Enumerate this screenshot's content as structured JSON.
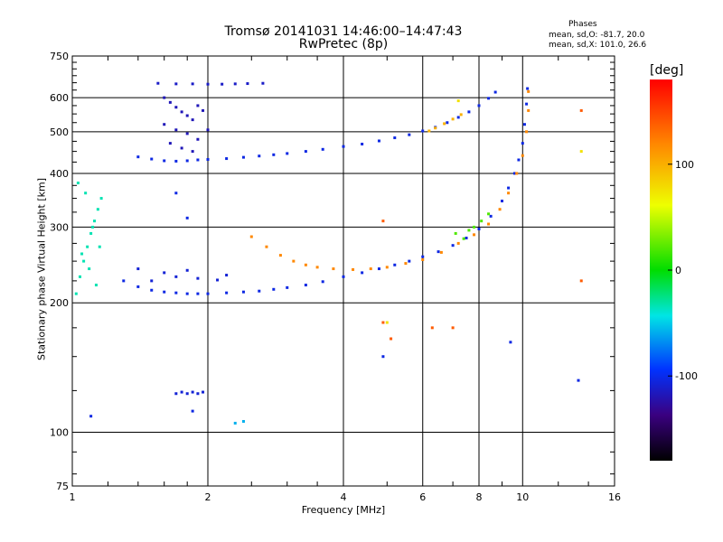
{
  "title": "Tromsø 20141031 14:46:00–14:47:43",
  "subtitle": "RwPretec (8p)",
  "stats": {
    "header": "Phases",
    "o_line": "mean, sd,O: -81.7, 20.0",
    "x_line": "mean, sd,X: 101.0, 26.6"
  },
  "chart_data": {
    "type": "scatter",
    "xlabel": "Frequency [MHz]",
    "ylabel": "Stationary phase Virtual Height [km]",
    "x_scale": "log",
    "y_scale": "log",
    "xlim": [
      1,
      16
    ],
    "ylim": [
      75,
      750
    ],
    "x_ticks": [
      1,
      2,
      4,
      6,
      8,
      10,
      16
    ],
    "x_tick_labels": [
      "1",
      "2",
      "4",
      "6",
      "8",
      "10",
      "16"
    ],
    "y_ticks": [
      75,
      100,
      200,
      300,
      400,
      500,
      600,
      750
    ],
    "y_tick_labels": [
      "75",
      "100",
      "200",
      "300",
      "400",
      "500",
      "600",
      "750"
    ],
    "grid": true,
    "colorbar": {
      "label": "[deg]",
      "range": [
        -180,
        180
      ],
      "ticks": [
        100,
        0,
        -100
      ],
      "tick_labels": [
        "100",
        "0",
        "-100"
      ]
    },
    "series": [
      {
        "points": [
          [
            1.4,
            437
          ],
          [
            1.5,
            432
          ],
          [
            1.6,
            428
          ],
          [
            1.7,
            427
          ],
          [
            1.8,
            428
          ],
          [
            1.9,
            430
          ],
          [
            2.0,
            431
          ],
          [
            2.2,
            433
          ],
          [
            2.4,
            436
          ],
          [
            2.6,
            439
          ],
          [
            2.8,
            442
          ],
          [
            3.0,
            445
          ],
          [
            3.3,
            450
          ],
          [
            3.6,
            455
          ],
          [
            4.0,
            462
          ],
          [
            4.4,
            468
          ],
          [
            4.8,
            476
          ],
          [
            5.2,
            484
          ],
          [
            5.6,
            492
          ],
          [
            6.0,
            502
          ],
          [
            6.4,
            512
          ],
          [
            6.8,
            525
          ],
          [
            7.2,
            540
          ],
          [
            7.6,
            556
          ],
          [
            8.0,
            575
          ],
          [
            8.4,
            598
          ],
          [
            8.7,
            618
          ]
        ],
        "phase": -105
      },
      {
        "points": [
          [
            1.55,
            648
          ],
          [
            1.7,
            646
          ],
          [
            1.85,
            646
          ],
          [
            2.0,
            645
          ],
          [
            2.15,
            645
          ],
          [
            2.3,
            646
          ],
          [
            2.45,
            647
          ],
          [
            2.65,
            648
          ]
        ],
        "phase": -115
      },
      {
        "points": [
          [
            1.6,
            600
          ],
          [
            1.65,
            585
          ],
          [
            1.7,
            570
          ],
          [
            1.75,
            556
          ],
          [
            1.8,
            545
          ],
          [
            1.85,
            533
          ],
          [
            1.9,
            575
          ],
          [
            1.95,
            560
          ],
          [
            1.6,
            520
          ],
          [
            1.7,
            505
          ],
          [
            1.8,
            495
          ],
          [
            1.9,
            480
          ],
          [
            1.65,
            470
          ],
          [
            1.75,
            458
          ],
          [
            1.85,
            450
          ],
          [
            2.0,
            505
          ]
        ],
        "phase": -120
      },
      {
        "points": [
          [
            1.3,
            225
          ],
          [
            1.4,
            218
          ],
          [
            1.5,
            214
          ],
          [
            1.6,
            212
          ],
          [
            1.7,
            211
          ],
          [
            1.8,
            210
          ],
          [
            1.9,
            210
          ],
          [
            2.0,
            210
          ],
          [
            2.2,
            211
          ],
          [
            2.4,
            212
          ],
          [
            2.6,
            213
          ],
          [
            2.8,
            215
          ],
          [
            3.0,
            217
          ],
          [
            3.3,
            220
          ],
          [
            3.6,
            224
          ],
          [
            4.0,
            230
          ],
          [
            4.4,
            235
          ],
          [
            4.8,
            240
          ],
          [
            5.2,
            245
          ],
          [
            5.6,
            250
          ],
          [
            6.0,
            256
          ],
          [
            6.5,
            263
          ],
          [
            7.0,
            272
          ],
          [
            7.5,
            283
          ],
          [
            8.0,
            297
          ],
          [
            8.5,
            318
          ],
          [
            9.0,
            345
          ],
          [
            9.3,
            370
          ],
          [
            9.6,
            400
          ],
          [
            9.8,
            430
          ],
          [
            10.0,
            470
          ],
          [
            10.1,
            520
          ],
          [
            10.2,
            580
          ],
          [
            10.25,
            630
          ]
        ],
        "phase": -105
      },
      {
        "points": [
          [
            1.5,
            225
          ],
          [
            1.7,
            230
          ],
          [
            1.9,
            228
          ],
          [
            2.1,
            226
          ],
          [
            1.6,
            235
          ],
          [
            1.8,
            238
          ],
          [
            2.2,
            232
          ],
          [
            1.4,
            240
          ]
        ],
        "phase": -110
      },
      {
        "points": [
          [
            2.5,
            285
          ],
          [
            2.7,
            270
          ],
          [
            2.9,
            258
          ],
          [
            3.1,
            250
          ],
          [
            3.3,
            245
          ],
          [
            3.5,
            242
          ],
          [
            3.8,
            240
          ],
          [
            4.2,
            239
          ],
          [
            4.6,
            240
          ],
          [
            5.0,
            242
          ],
          [
            5.5,
            247
          ],
          [
            6.0,
            252
          ],
          [
            6.6,
            262
          ],
          [
            7.2,
            275
          ],
          [
            7.8,
            288
          ],
          [
            8.4,
            305
          ],
          [
            8.9,
            330
          ],
          [
            9.3,
            360
          ],
          [
            9.7,
            400
          ],
          [
            10.0,
            440
          ],
          [
            10.2,
            500
          ],
          [
            10.3,
            560
          ],
          [
            10.3,
            620
          ]
        ],
        "phase": 120
      },
      {
        "points": [
          [
            6.2,
            502
          ],
          [
            6.4,
            510
          ],
          [
            6.7,
            522
          ],
          [
            7.0,
            535
          ],
          [
            7.3,
            548
          ]
        ],
        "phase": 100
      },
      {
        "points": [
          [
            1.02,
            210
          ],
          [
            1.04,
            230
          ],
          [
            1.06,
            250
          ],
          [
            1.08,
            270
          ],
          [
            1.1,
            290
          ],
          [
            1.12,
            310
          ],
          [
            1.14,
            330
          ],
          [
            1.16,
            350
          ],
          [
            1.03,
            380
          ],
          [
            1.07,
            360
          ],
          [
            1.11,
            300
          ],
          [
            1.05,
            260
          ],
          [
            1.09,
            240
          ],
          [
            1.13,
            220
          ],
          [
            1.15,
            270
          ]
        ],
        "phase": -35
      },
      {
        "points": [
          [
            1.7,
            123
          ],
          [
            1.75,
            124
          ],
          [
            1.8,
            123
          ],
          [
            1.85,
            124
          ],
          [
            1.9,
            123
          ],
          [
            1.95,
            124
          ]
        ],
        "phase": -110
      },
      {
        "points": [
          [
            2.3,
            105
          ],
          [
            2.4,
            106
          ]
        ],
        "phase": -60
      },
      {
        "points": [
          [
            7.1,
            290
          ],
          [
            7.4,
            282
          ],
          [
            7.6,
            295
          ],
          [
            7.8,
            300
          ],
          [
            8.1,
            310
          ],
          [
            8.4,
            322
          ]
        ],
        "phase": 20
      },
      {
        "points": [
          [
            4.9,
            310
          ],
          [
            4.9,
            180
          ],
          [
            5.1,
            165
          ],
          [
            6.3,
            175
          ],
          [
            7.0,
            175
          ],
          [
            13.5,
            560
          ],
          [
            13.5,
            225
          ]
        ],
        "phase": 140
      },
      {
        "points": [
          [
            4.9,
            150
          ],
          [
            9.4,
            162
          ],
          [
            13.3,
            132
          ],
          [
            1.85,
            112
          ],
          [
            1.1,
            109
          ],
          [
            1.7,
            360
          ],
          [
            1.8,
            315
          ]
        ],
        "phase": -105
      },
      {
        "points": [
          [
            13.5,
            450
          ],
          [
            7.2,
            590
          ],
          [
            5.0,
            180
          ]
        ],
        "phase": 75
      }
    ]
  }
}
